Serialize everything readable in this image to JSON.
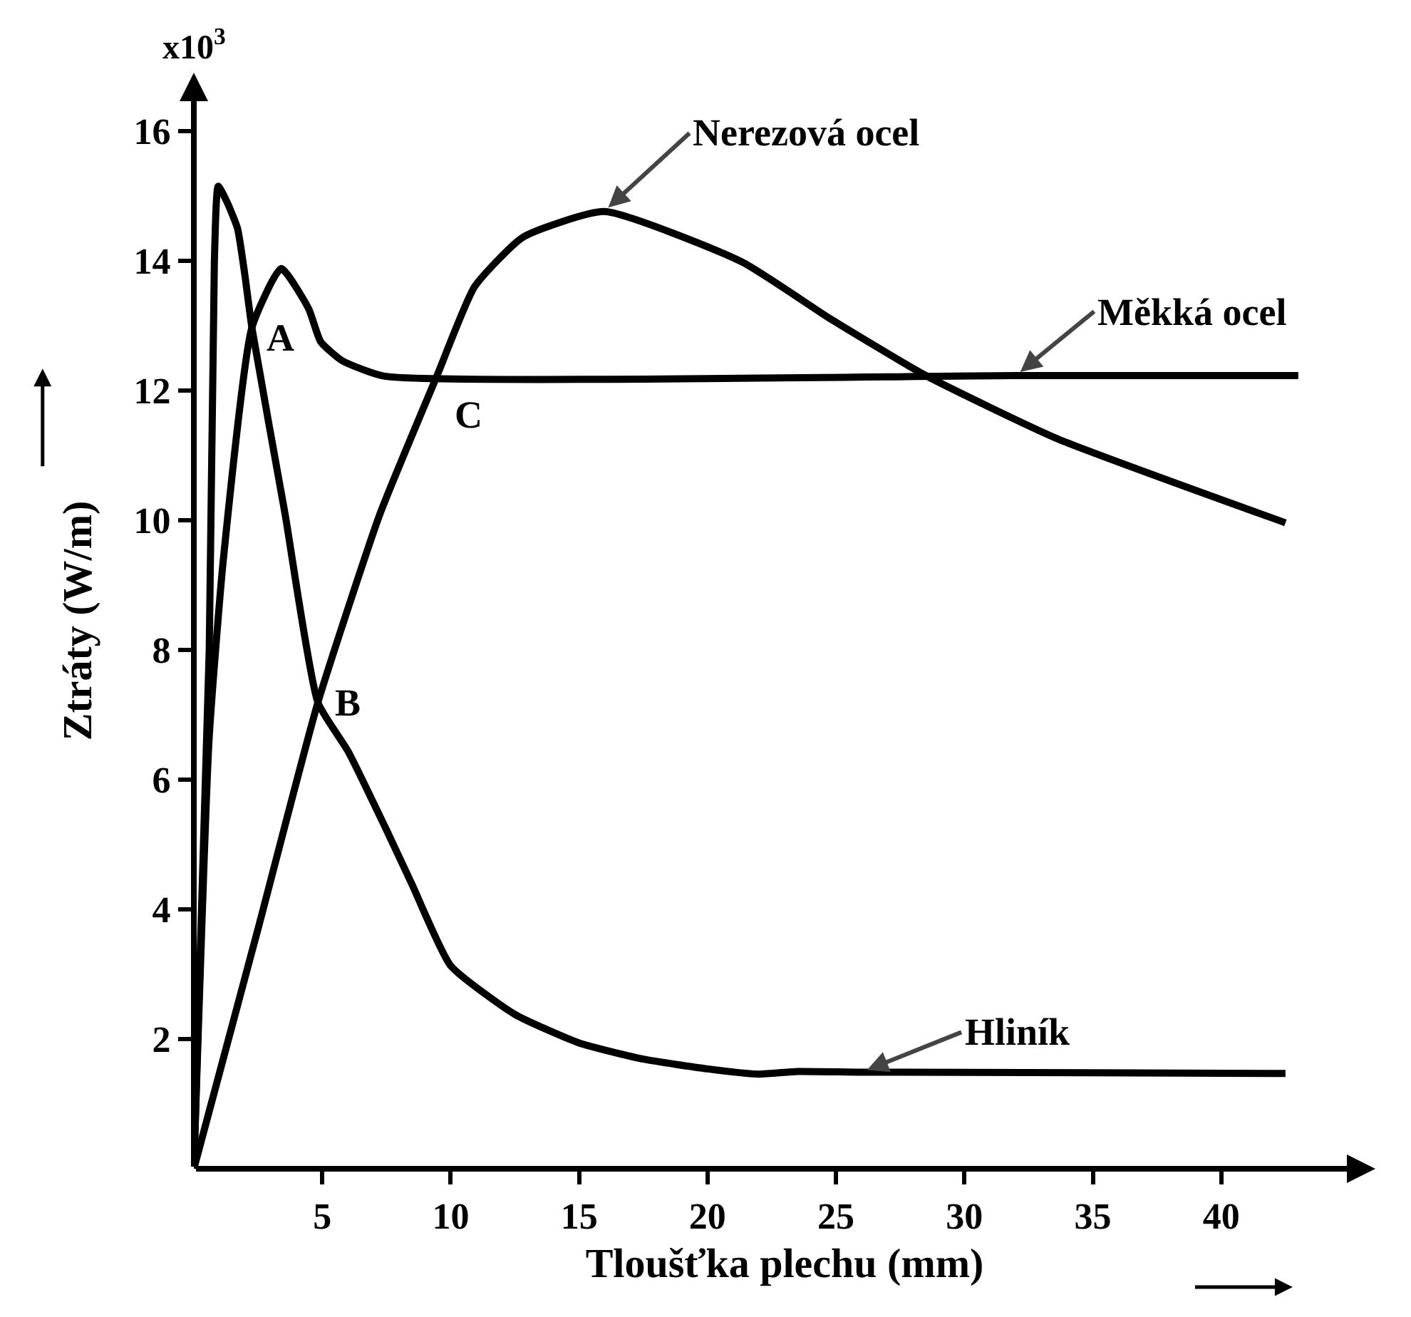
{
  "chart_data": {
    "type": "line",
    "xlabel": "Tloušťka plechu (mm)",
    "ylabel": "Ztráty (W/m)",
    "xlim": [
      0,
      46
    ],
    "ylim": [
      0,
      16.9
    ],
    "xticks": [
      5,
      10,
      15,
      20,
      25,
      30,
      35,
      40
    ],
    "yticks": [
      2,
      4,
      6,
      8,
      10,
      12,
      14,
      16
    ],
    "grid": false,
    "line_style": "solid",
    "marker": "none",
    "series": [
      {
        "name": "Nerezová ocel",
        "color": "#000000",
        "x": [
          0,
          2.5,
          4.83,
          7.25,
          9.47,
          10.93,
          12.8,
          15.97,
          21.35,
          24.8,
          28.5,
          33.6,
          42.5
        ],
        "values": [
          0,
          3.7,
          7.19,
          10.1,
          12.23,
          13.6,
          14.36,
          14.76,
          13.98,
          13.1,
          12.23,
          11.26,
          9.96
        ]
      },
      {
        "name": "Měkká ocel",
        "color": "#000000",
        "x": [
          0,
          0.59,
          1.15,
          2.26,
          3.4,
          4.47,
          4.94,
          5.77,
          7.43,
          32,
          43
        ],
        "values": [
          0,
          6.6,
          9.4,
          12.97,
          13.88,
          13.26,
          12.75,
          12.46,
          12.22,
          12.23,
          12.23
        ]
      },
      {
        "name": "Hliník",
        "color": "#000000",
        "x": [
          0,
          0.6,
          0.8,
          0.95,
          1.3,
          1.7,
          1.98,
          2.26,
          3.55,
          4.83,
          6,
          7.47,
          8.5,
          10,
          12.5,
          15,
          17.5,
          20,
          22,
          23.5,
          26,
          42.5
        ],
        "values": [
          0,
          8,
          14,
          15.15,
          14.9,
          14.5,
          13.8,
          12.97,
          10.1,
          7.19,
          6.44,
          5.25,
          4.38,
          3.13,
          2.38,
          1.94,
          1.69,
          1.54,
          1.46,
          1.5,
          1.49,
          1.47
        ]
      }
    ],
    "annotations": [
      "x10$^{3}$",
      {
        "text": "A",
        "x": 2.26,
        "y": 12.97
      },
      {
        "text": "B",
        "x": 4.83,
        "y": 7.19
      },
      {
        "text": "C",
        "x": 9.47,
        "y": 12.23
      }
    ]
  }
}
